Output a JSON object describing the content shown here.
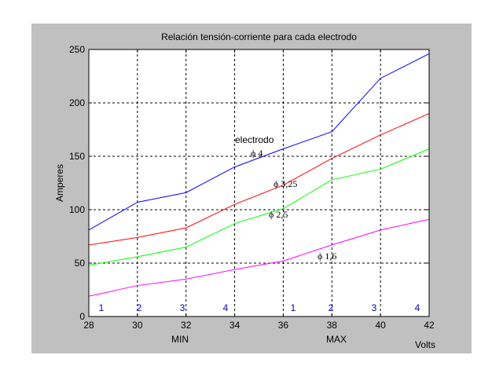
{
  "window": {
    "background": "#c0c0c0",
    "plot_background": "#ffffff"
  },
  "chart_data": {
    "type": "line",
    "title": "Relación tensión-corriente para cada electrodo",
    "xlabel": "Volts",
    "ylabel": "Amperes",
    "xlim": [
      28,
      42
    ],
    "ylim": [
      0,
      250
    ],
    "xticks": [
      28,
      30,
      32,
      34,
      36,
      38,
      40,
      42
    ],
    "yticks": [
      0,
      50,
      100,
      150,
      200,
      250
    ],
    "grid": true,
    "x": [
      28,
      30,
      32,
      34,
      36,
      38,
      40,
      42
    ],
    "series": [
      {
        "name": "ϕ 4",
        "color": "#0000ff",
        "values": [
          81,
          107,
          116,
          140,
          157,
          173,
          223,
          246
        ]
      },
      {
        "name": "ϕ 3,25",
        "color": "#ff0000",
        "values": [
          67,
          74,
          83,
          105,
          123,
          148,
          170,
          190
        ]
      },
      {
        "name": "ϕ 2,5",
        "color": "#00ff00",
        "values": [
          48,
          56,
          65,
          87,
          101,
          128,
          138,
          157
        ]
      },
      {
        "name": "ϕ 1,6",
        "color": "#ff00ff",
        "values": [
          19,
          29,
          35,
          44,
          52,
          67,
          81,
          91
        ]
      }
    ],
    "annotations": {
      "electrodo": "electrodo",
      "min": "MIN",
      "max": "MAX",
      "numbers": [
        "1",
        "2",
        "3",
        "4",
        "1",
        "2",
        "3",
        "4"
      ]
    }
  }
}
